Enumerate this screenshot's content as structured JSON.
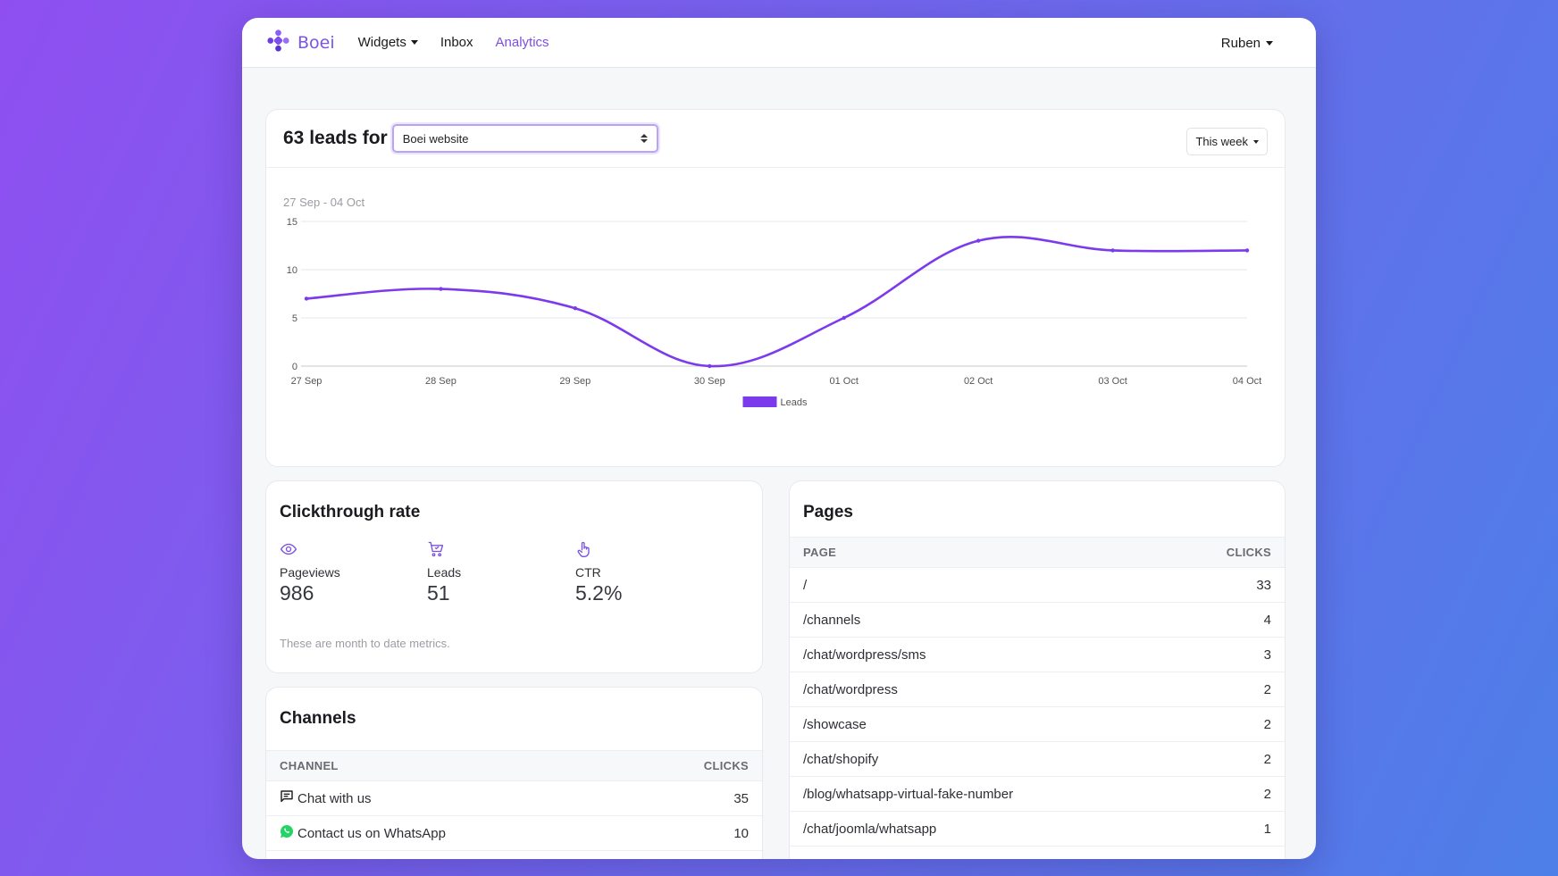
{
  "nav": {
    "brand": "Boei",
    "items": [
      {
        "label": "Widgets",
        "dropdown": true,
        "active": false
      },
      {
        "label": "Inbox",
        "dropdown": false,
        "active": false
      },
      {
        "label": "Analytics",
        "dropdown": false,
        "active": true
      }
    ],
    "user": "Ruben",
    "accent_color": "#7b4fe0"
  },
  "leads_header": {
    "title": "63 leads for",
    "site_select_value": "Boei website",
    "period_label": "This week"
  },
  "date_range": "27 Sep - 04 Oct",
  "chart_data": {
    "type": "line",
    "x": [
      "27 Sep",
      "28 Sep",
      "29 Sep",
      "30 Sep",
      "01 Oct",
      "02 Oct",
      "03 Oct",
      "04 Oct"
    ],
    "series": [
      {
        "name": "Leads",
        "values": [
          7,
          8,
          6,
          0,
          5,
          13,
          12,
          12
        ],
        "color": "#7c3aed"
      }
    ],
    "ylim": [
      0,
      15
    ],
    "yticks": [
      0,
      5,
      10,
      15
    ],
    "grid": true,
    "legend": "bottom-center"
  },
  "ctr": {
    "title": "Clickthrough rate",
    "metrics": [
      {
        "icon": "eye-icon",
        "label": "Pageviews",
        "value": "986"
      },
      {
        "icon": "cart-icon",
        "label": "Leads",
        "value": "51"
      },
      {
        "icon": "pointer-hand-icon",
        "label": "CTR",
        "value": "5.2%"
      }
    ],
    "note": "These are month to date metrics."
  },
  "channels": {
    "title": "Channels",
    "col_channel": "CHANNEL",
    "col_clicks": "CLICKS",
    "rows": [
      {
        "icon": "chat-bubble-icon",
        "name": "Chat with us",
        "clicks": "35"
      },
      {
        "icon": "whatsapp-icon",
        "name": "Contact us on WhatsApp",
        "clicks": "10"
      }
    ]
  },
  "pages": {
    "title": "Pages",
    "col_page": "PAGE",
    "col_clicks": "CLICKS",
    "rows": [
      {
        "page": "/",
        "clicks": "33"
      },
      {
        "page": "/channels",
        "clicks": "4"
      },
      {
        "page": "/chat/wordpress/sms",
        "clicks": "3"
      },
      {
        "page": "/chat/wordpress",
        "clicks": "2"
      },
      {
        "page": "/showcase",
        "clicks": "2"
      },
      {
        "page": "/chat/shopify",
        "clicks": "2"
      },
      {
        "page": "/blog/whatsapp-virtual-fake-number",
        "clicks": "2"
      },
      {
        "page": "/chat/joomla/whatsapp",
        "clicks": "1"
      }
    ]
  }
}
